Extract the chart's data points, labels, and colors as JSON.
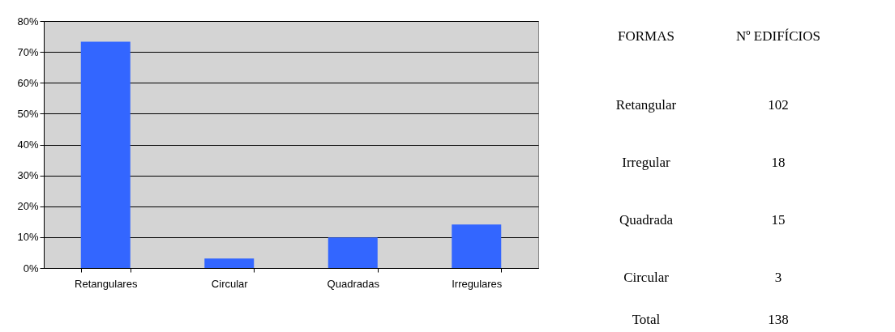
{
  "chart_data": [
    {
      "type": "bar",
      "categories": [
        "Retangulares",
        "Circular",
        "Quadradas",
        "Irregulares"
      ],
      "values": [
        73.3,
        3.1,
        9.9,
        14.1
      ],
      "color": "#3366ff",
      "ylim": [
        0,
        80
      ],
      "yticks": [
        {
          "value": 0,
          "label": "0%"
        },
        {
          "value": 10,
          "label": "10%"
        },
        {
          "value": 20,
          "label": "20%"
        },
        {
          "value": 30,
          "label": "30%"
        },
        {
          "value": 40,
          "label": "40%"
        },
        {
          "value": 50,
          "label": "50%"
        },
        {
          "value": 60,
          "label": "60%"
        },
        {
          "value": 70,
          "label": "70%"
        },
        {
          "value": 80,
          "label": "80%"
        }
      ],
      "grid": "y"
    },
    {
      "type": "other",
      "annotations": [
        "FORMAS",
        "Nº EDIFÍCIOS",
        "Retangular",
        "102",
        "Irregular",
        "18",
        "Quadrada",
        "15",
        "Circular",
        "3",
        "Total",
        "138"
      ]
    }
  ]
}
